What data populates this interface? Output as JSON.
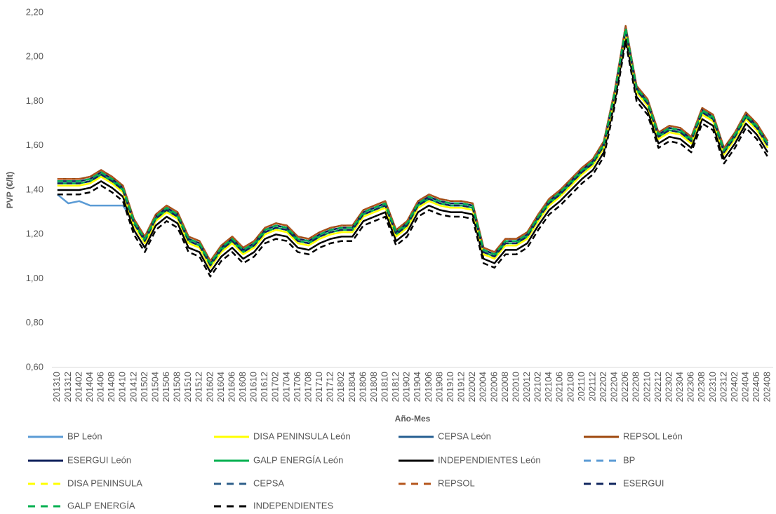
{
  "chart_data": {
    "type": "line",
    "x_label": "Año-Mes",
    "y_label": "PVP (€/lt)",
    "categories": [
      "201310",
      "201312",
      "201402",
      "201404",
      "201406",
      "201408",
      "201410",
      "201412",
      "201502",
      "201504",
      "201506",
      "201508",
      "201510",
      "201512",
      "201602",
      "201604",
      "201606",
      "201608",
      "201610",
      "201612",
      "201702",
      "201704",
      "201706",
      "201708",
      "201710",
      "201712",
      "201802",
      "201804",
      "201806",
      "201808",
      "201810",
      "201812",
      "201902",
      "201904",
      "201906",
      "201908",
      "201910",
      "201912",
      "202002",
      "202004",
      "202006",
      "202008",
      "202010",
      "202012",
      "202102",
      "202104",
      "202106",
      "202108",
      "202110",
      "202112",
      "202202",
      "202204",
      "202206",
      "202208",
      "202210",
      "202212",
      "202302",
      "202304",
      "202306",
      "202308",
      "202310",
      "202312",
      "202402",
      "202404",
      "202406",
      "202408"
    ],
    "ylim": [
      0.6,
      2.2
    ],
    "yticks": [
      {
        "value": 0.6,
        "label": "0,60"
      },
      {
        "value": 0.8,
        "label": "0,80"
      },
      {
        "value": 1.0,
        "label": "1,00"
      },
      {
        "value": 1.2,
        "label": "1,20"
      },
      {
        "value": 1.4,
        "label": "1,40"
      },
      {
        "value": 1.6,
        "label": "1,60"
      },
      {
        "value": 1.8,
        "label": "1,80"
      },
      {
        "value": 2.0,
        "label": "2,00"
      },
      {
        "value": 2.2,
        "label": "2,20"
      }
    ],
    "grid": false,
    "series": [
      {
        "name": "BP León",
        "color": "#5b9bd5",
        "dashed": false,
        "values": [
          1.38,
          1.34,
          1.35,
          1.33,
          1.33,
          1.33,
          1.33,
          1.26,
          1.18,
          1.28,
          1.32,
          1.29,
          1.18,
          1.16,
          1.07,
          1.14,
          1.18,
          1.13,
          1.16,
          1.22,
          1.24,
          1.23,
          1.18,
          1.17,
          1.2,
          1.22,
          1.23,
          1.23,
          1.3,
          1.32,
          1.34,
          1.21,
          1.25,
          1.34,
          1.37,
          1.35,
          1.34,
          1.34,
          1.33,
          1.13,
          1.11,
          1.17,
          1.17,
          1.2,
          1.28,
          1.35,
          1.39,
          1.44,
          1.49,
          1.53,
          1.61,
          1.84,
          2.13,
          1.86,
          1.8,
          1.65,
          1.68,
          1.67,
          1.63,
          1.76,
          1.73,
          1.58,
          1.65,
          1.74,
          1.69,
          1.61
        ]
      },
      {
        "name": "DISA PENINSULA León",
        "color": "#ffff00",
        "dashed": false,
        "values": [
          1.42,
          1.42,
          1.42,
          1.43,
          1.46,
          1.43,
          1.39,
          1.24,
          1.16,
          1.26,
          1.3,
          1.27,
          1.16,
          1.14,
          1.05,
          1.12,
          1.16,
          1.11,
          1.14,
          1.2,
          1.22,
          1.21,
          1.16,
          1.15,
          1.18,
          1.2,
          1.21,
          1.21,
          1.28,
          1.3,
          1.32,
          1.19,
          1.23,
          1.32,
          1.35,
          1.33,
          1.32,
          1.32,
          1.31,
          1.11,
          1.09,
          1.15,
          1.15,
          1.18,
          1.26,
          1.33,
          1.37,
          1.42,
          1.47,
          1.51,
          1.59,
          1.82,
          2.11,
          1.84,
          1.78,
          1.63,
          1.66,
          1.65,
          1.61,
          1.74,
          1.71,
          1.56,
          1.63,
          1.72,
          1.67,
          1.59
        ]
      },
      {
        "name": "CEPSA León",
        "color": "#255e91",
        "dashed": false,
        "values": [
          1.43,
          1.43,
          1.43,
          1.44,
          1.47,
          1.44,
          1.4,
          1.25,
          1.17,
          1.27,
          1.31,
          1.28,
          1.17,
          1.15,
          1.06,
          1.13,
          1.17,
          1.12,
          1.15,
          1.21,
          1.23,
          1.22,
          1.17,
          1.16,
          1.19,
          1.21,
          1.22,
          1.22,
          1.29,
          1.31,
          1.33,
          1.2,
          1.24,
          1.33,
          1.36,
          1.34,
          1.33,
          1.33,
          1.32,
          1.12,
          1.1,
          1.16,
          1.16,
          1.19,
          1.27,
          1.34,
          1.38,
          1.43,
          1.48,
          1.52,
          1.6,
          1.83,
          2.12,
          1.85,
          1.79,
          1.64,
          1.67,
          1.66,
          1.62,
          1.75,
          1.72,
          1.57,
          1.64,
          1.73,
          1.68,
          1.6
        ]
      },
      {
        "name": "REPSOL León",
        "color": "#9e480e",
        "dashed": false,
        "values": [
          1.45,
          1.45,
          1.45,
          1.46,
          1.49,
          1.46,
          1.42,
          1.27,
          1.19,
          1.29,
          1.33,
          1.3,
          1.19,
          1.17,
          1.08,
          1.15,
          1.19,
          1.14,
          1.17,
          1.23,
          1.25,
          1.24,
          1.19,
          1.18,
          1.21,
          1.23,
          1.24,
          1.24,
          1.31,
          1.33,
          1.35,
          1.22,
          1.26,
          1.35,
          1.38,
          1.36,
          1.35,
          1.35,
          1.34,
          1.14,
          1.12,
          1.18,
          1.18,
          1.21,
          1.29,
          1.36,
          1.4,
          1.45,
          1.5,
          1.54,
          1.62,
          1.85,
          2.14,
          1.87,
          1.81,
          1.66,
          1.69,
          1.68,
          1.64,
          1.77,
          1.74,
          1.59,
          1.66,
          1.75,
          1.7,
          1.62
        ]
      },
      {
        "name": "ESERGUI León",
        "color": "#0e1f5b",
        "dashed": false,
        "values": [
          1.44,
          1.44,
          1.44,
          1.45,
          1.48,
          1.45,
          1.41,
          1.26,
          1.18,
          1.28,
          1.32,
          1.29,
          1.18,
          1.16,
          1.07,
          1.14,
          1.18,
          1.13,
          1.16,
          1.22,
          1.24,
          1.23,
          1.18,
          1.17,
          1.2,
          1.22,
          1.23,
          1.23,
          1.3,
          1.32,
          1.34,
          1.21,
          1.25,
          1.34,
          1.37,
          1.35,
          1.34,
          1.34,
          1.33,
          1.13,
          1.11,
          1.17,
          1.17,
          1.2,
          1.28,
          1.35,
          1.39,
          1.44,
          1.49,
          1.53,
          1.61,
          1.84,
          2.13,
          1.86,
          1.8,
          1.65,
          1.68,
          1.67,
          1.63,
          1.76,
          1.73,
          1.58,
          1.65,
          1.74,
          1.69,
          1.61
        ]
      },
      {
        "name": "GALP ENERGÍA León",
        "color": "#00b050",
        "dashed": false,
        "values": [
          1.43,
          1.43,
          1.43,
          1.44,
          1.47,
          1.44,
          1.4,
          1.25,
          1.17,
          1.27,
          1.31,
          1.28,
          1.17,
          1.15,
          1.06,
          1.13,
          1.17,
          1.12,
          1.15,
          1.21,
          1.23,
          1.22,
          1.17,
          1.16,
          1.19,
          1.21,
          1.22,
          1.22,
          1.29,
          1.31,
          1.33,
          1.2,
          1.24,
          1.33,
          1.36,
          1.34,
          1.33,
          1.33,
          1.32,
          1.12,
          1.1,
          1.16,
          1.16,
          1.19,
          1.27,
          1.34,
          1.38,
          1.43,
          1.48,
          1.52,
          1.6,
          1.83,
          2.12,
          1.85,
          1.79,
          1.64,
          1.67,
          1.66,
          1.62,
          1.75,
          1.72,
          1.57,
          1.64,
          1.73,
          1.68,
          1.6
        ]
      },
      {
        "name": "INDEPENDIENTES León",
        "color": "#000000",
        "dashed": false,
        "values": [
          1.4,
          1.4,
          1.4,
          1.41,
          1.44,
          1.41,
          1.37,
          1.22,
          1.14,
          1.24,
          1.28,
          1.25,
          1.14,
          1.12,
          1.03,
          1.1,
          1.14,
          1.09,
          1.12,
          1.18,
          1.2,
          1.19,
          1.14,
          1.13,
          1.16,
          1.18,
          1.19,
          1.19,
          1.26,
          1.28,
          1.3,
          1.17,
          1.21,
          1.3,
          1.33,
          1.31,
          1.3,
          1.3,
          1.29,
          1.09,
          1.07,
          1.13,
          1.13,
          1.16,
          1.24,
          1.31,
          1.35,
          1.4,
          1.45,
          1.49,
          1.57,
          1.8,
          2.09,
          1.82,
          1.76,
          1.61,
          1.64,
          1.63,
          1.59,
          1.72,
          1.69,
          1.54,
          1.61,
          1.7,
          1.65,
          1.57
        ]
      },
      {
        "name": "BP",
        "color": "#5b9bd5",
        "dashed": true,
        "values": [
          1.45,
          1.45,
          1.45,
          1.46,
          1.49,
          1.46,
          1.42,
          1.27,
          1.19,
          1.29,
          1.33,
          1.3,
          1.19,
          1.17,
          1.08,
          1.15,
          1.19,
          1.14,
          1.17,
          1.23,
          1.25,
          1.24,
          1.19,
          1.18,
          1.21,
          1.23,
          1.24,
          1.24,
          1.31,
          1.33,
          1.35,
          1.22,
          1.26,
          1.35,
          1.38,
          1.36,
          1.35,
          1.35,
          1.34,
          1.14,
          1.12,
          1.18,
          1.18,
          1.21,
          1.29,
          1.36,
          1.4,
          1.45,
          1.5,
          1.54,
          1.62,
          1.85,
          2.14,
          1.87,
          1.81,
          1.66,
          1.69,
          1.68,
          1.64,
          1.77,
          1.74,
          1.59,
          1.66,
          1.75,
          1.7,
          1.62
        ]
      },
      {
        "name": "DISA PENINSULA",
        "color": "#ffff00",
        "dashed": true,
        "values": [
          1.42,
          1.42,
          1.42,
          1.43,
          1.46,
          1.43,
          1.39,
          1.24,
          1.16,
          1.26,
          1.3,
          1.27,
          1.16,
          1.14,
          1.05,
          1.12,
          1.16,
          1.11,
          1.14,
          1.2,
          1.22,
          1.21,
          1.16,
          1.15,
          1.18,
          1.2,
          1.21,
          1.21,
          1.28,
          1.3,
          1.32,
          1.19,
          1.23,
          1.32,
          1.35,
          1.33,
          1.32,
          1.32,
          1.31,
          1.11,
          1.09,
          1.15,
          1.15,
          1.18,
          1.26,
          1.33,
          1.37,
          1.42,
          1.47,
          1.51,
          1.59,
          1.82,
          2.11,
          1.84,
          1.78,
          1.63,
          1.66,
          1.65,
          1.61,
          1.74,
          1.71,
          1.56,
          1.63,
          1.72,
          1.67,
          1.59
        ]
      },
      {
        "name": "CEPSA",
        "color": "#2e5f8a",
        "dashed": true,
        "values": [
          1.44,
          1.44,
          1.44,
          1.45,
          1.48,
          1.45,
          1.41,
          1.26,
          1.18,
          1.28,
          1.32,
          1.29,
          1.18,
          1.16,
          1.07,
          1.14,
          1.18,
          1.13,
          1.16,
          1.22,
          1.24,
          1.23,
          1.18,
          1.17,
          1.2,
          1.22,
          1.23,
          1.23,
          1.3,
          1.32,
          1.34,
          1.21,
          1.25,
          1.34,
          1.37,
          1.35,
          1.34,
          1.34,
          1.33,
          1.13,
          1.11,
          1.17,
          1.17,
          1.2,
          1.28,
          1.35,
          1.39,
          1.44,
          1.49,
          1.53,
          1.61,
          1.84,
          2.13,
          1.86,
          1.8,
          1.65,
          1.68,
          1.67,
          1.63,
          1.76,
          1.73,
          1.58,
          1.65,
          1.74,
          1.69,
          1.61
        ]
      },
      {
        "name": "REPSOL",
        "color": "#b5561c",
        "dashed": true,
        "values": [
          1.45,
          1.45,
          1.45,
          1.46,
          1.49,
          1.46,
          1.42,
          1.27,
          1.19,
          1.29,
          1.33,
          1.3,
          1.19,
          1.17,
          1.08,
          1.15,
          1.19,
          1.14,
          1.17,
          1.23,
          1.25,
          1.24,
          1.19,
          1.18,
          1.21,
          1.23,
          1.24,
          1.24,
          1.31,
          1.33,
          1.35,
          1.22,
          1.26,
          1.35,
          1.38,
          1.36,
          1.35,
          1.35,
          1.34,
          1.14,
          1.12,
          1.18,
          1.18,
          1.21,
          1.29,
          1.36,
          1.4,
          1.45,
          1.5,
          1.54,
          1.62,
          1.85,
          2.14,
          1.87,
          1.81,
          1.66,
          1.69,
          1.68,
          1.64,
          1.77,
          1.74,
          1.59,
          1.66,
          1.75,
          1.7,
          1.62
        ]
      },
      {
        "name": "ESERGUI",
        "color": "#10265e",
        "dashed": true,
        "values": [
          1.43,
          1.43,
          1.43,
          1.44,
          1.47,
          1.44,
          1.4,
          1.25,
          1.17,
          1.27,
          1.31,
          1.28,
          1.17,
          1.15,
          1.06,
          1.13,
          1.17,
          1.12,
          1.15,
          1.21,
          1.23,
          1.22,
          1.17,
          1.16,
          1.19,
          1.21,
          1.22,
          1.22,
          1.29,
          1.31,
          1.33,
          1.2,
          1.24,
          1.33,
          1.36,
          1.34,
          1.33,
          1.33,
          1.32,
          1.12,
          1.1,
          1.16,
          1.16,
          1.19,
          1.27,
          1.34,
          1.38,
          1.43,
          1.48,
          1.52,
          1.6,
          1.83,
          2.12,
          1.85,
          1.79,
          1.64,
          1.67,
          1.66,
          1.62,
          1.75,
          1.72,
          1.57,
          1.64,
          1.73,
          1.68,
          1.6
        ]
      },
      {
        "name": "GALP ENERGÍA",
        "color": "#00b050",
        "dashed": true,
        "values": [
          1.44,
          1.44,
          1.44,
          1.45,
          1.48,
          1.45,
          1.41,
          1.26,
          1.18,
          1.28,
          1.32,
          1.29,
          1.18,
          1.16,
          1.07,
          1.14,
          1.18,
          1.13,
          1.16,
          1.22,
          1.24,
          1.23,
          1.18,
          1.17,
          1.2,
          1.22,
          1.23,
          1.23,
          1.3,
          1.32,
          1.34,
          1.21,
          1.25,
          1.34,
          1.37,
          1.35,
          1.34,
          1.34,
          1.33,
          1.13,
          1.11,
          1.17,
          1.17,
          1.2,
          1.28,
          1.35,
          1.39,
          1.44,
          1.49,
          1.53,
          1.61,
          1.84,
          2.13,
          1.86,
          1.8,
          1.65,
          1.68,
          1.67,
          1.63,
          1.76,
          1.73,
          1.58,
          1.65,
          1.74,
          1.69,
          1.61
        ]
      },
      {
        "name": "INDEPENDIENTES",
        "color": "#000000",
        "dashed": true,
        "values": [
          1.38,
          1.38,
          1.38,
          1.39,
          1.42,
          1.39,
          1.35,
          1.2,
          1.12,
          1.22,
          1.26,
          1.23,
          1.12,
          1.1,
          1.01,
          1.08,
          1.12,
          1.07,
          1.1,
          1.16,
          1.18,
          1.17,
          1.12,
          1.11,
          1.14,
          1.16,
          1.17,
          1.17,
          1.24,
          1.26,
          1.28,
          1.15,
          1.19,
          1.28,
          1.31,
          1.29,
          1.28,
          1.28,
          1.27,
          1.07,
          1.05,
          1.11,
          1.11,
          1.14,
          1.22,
          1.29,
          1.33,
          1.38,
          1.43,
          1.47,
          1.55,
          1.78,
          2.07,
          1.8,
          1.74,
          1.59,
          1.62,
          1.61,
          1.57,
          1.7,
          1.67,
          1.52,
          1.59,
          1.68,
          1.63,
          1.55
        ]
      }
    ]
  }
}
